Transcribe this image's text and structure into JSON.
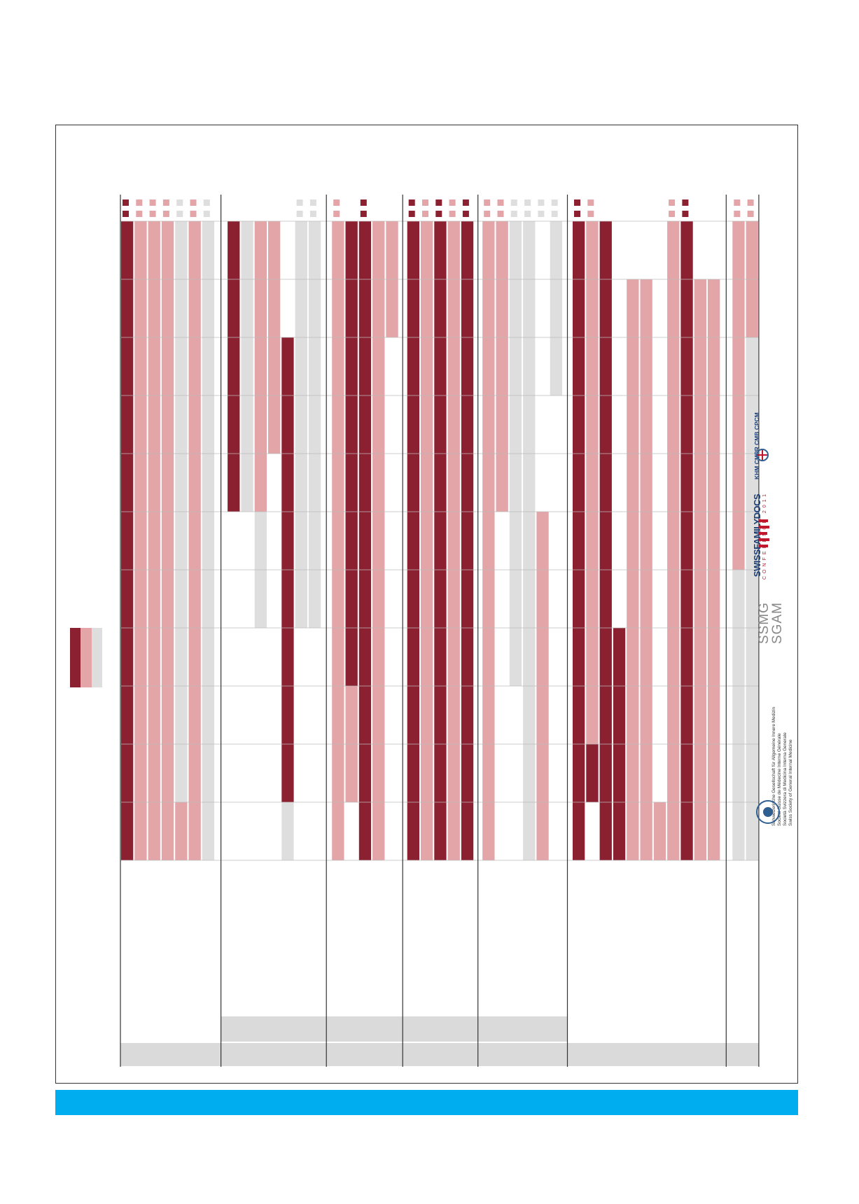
{
  "colors": {
    "dark": "#8b2030",
    "pink": "#e3a5a8",
    "gray": "#dedede",
    "band": "#00adef",
    "header_shade": "#dadada"
  },
  "legend": [
    {
      "color_key": "dark"
    },
    {
      "color_key": "pink"
    },
    {
      "color_key": "gray"
    }
  ],
  "schedule": {
    "column_count": 11,
    "groups": [
      {
        "rows": [
          {
            "marker": "dark",
            "spans": [
              [
                "dark",
                0,
                11
              ]
            ]
          },
          {
            "marker": "pink",
            "spans": [
              [
                "pink",
                0,
                11
              ]
            ]
          },
          {
            "marker": "pink",
            "spans": [
              [
                "pink",
                0,
                11
              ]
            ]
          },
          {
            "marker": "pink",
            "spans": [
              [
                "pink",
                0,
                11
              ]
            ]
          },
          {
            "marker": "gray",
            "spans": [
              [
                "gray",
                0,
                10
              ],
              [
                "pink",
                10,
                11
              ]
            ]
          },
          {
            "marker": "pink",
            "spans": [
              [
                "pink",
                0,
                11
              ]
            ]
          },
          {
            "marker": "gray",
            "spans": [
              [
                "gray",
                0,
                11
              ]
            ]
          }
        ]
      },
      {
        "rows": [
          {
            "marker": null,
            "spans": [
              [
                "dark",
                0,
                5
              ]
            ]
          },
          {
            "marker": null,
            "spans": [
              [
                "gray",
                0,
                5
              ]
            ]
          },
          {
            "marker": null,
            "spans": [
              [
                "pink",
                0,
                5
              ],
              [
                "gray",
                5,
                7
              ]
            ]
          },
          {
            "marker": null,
            "spans": [
              [
                "pink",
                0,
                4
              ]
            ]
          },
          {
            "marker": null,
            "spans": [
              [
                "dark",
                2,
                10
              ],
              [
                "gray",
                10,
                11
              ]
            ]
          },
          {
            "marker": "gray",
            "spans": [
              [
                "gray",
                0,
                7
              ]
            ]
          },
          {
            "marker": "gray",
            "spans": [
              [
                "gray",
                0,
                7
              ]
            ]
          }
        ]
      },
      {
        "rows": [
          {
            "marker": "pink",
            "spans": [
              [
                "pink",
                0,
                11
              ]
            ]
          },
          {
            "marker": null,
            "spans": [
              [
                "dark",
                0,
                8
              ],
              [
                "pink",
                8,
                10
              ]
            ]
          },
          {
            "marker": "dark",
            "spans": [
              [
                "dark",
                0,
                11
              ]
            ]
          },
          {
            "marker": null,
            "spans": [
              [
                "pink",
                0,
                11
              ]
            ]
          },
          {
            "marker": null,
            "spans": [
              [
                "pink",
                0,
                2
              ]
            ]
          }
        ]
      },
      {
        "rows": [
          {
            "marker": "dark",
            "spans": [
              [
                "dark",
                0,
                11
              ]
            ]
          },
          {
            "marker": "pink",
            "spans": [
              [
                "pink",
                0,
                11
              ]
            ]
          },
          {
            "marker": "dark",
            "spans": [
              [
                "dark",
                0,
                11
              ]
            ]
          },
          {
            "marker": "pink",
            "spans": [
              [
                "pink",
                0,
                11
              ]
            ]
          },
          {
            "marker": "dark",
            "spans": [
              [
                "dark",
                0,
                11
              ]
            ]
          }
        ]
      },
      {
        "rows": [
          {
            "marker": "pink",
            "spans": [
              [
                "pink",
                0,
                11
              ]
            ]
          },
          {
            "marker": "pink",
            "spans": [
              [
                "pink",
                0,
                5
              ]
            ]
          },
          {
            "marker": "gray",
            "spans": [
              [
                "gray",
                0,
                8
              ]
            ]
          },
          {
            "marker": "gray",
            "spans": [
              [
                "gray",
                0,
                11
              ]
            ]
          },
          {
            "marker": "gray",
            "spans": [
              [
                "pink",
                5,
                11
              ]
            ]
          },
          {
            "marker": "gray",
            "spans": [
              [
                "gray",
                0,
                3
              ]
            ]
          }
        ]
      },
      {
        "rows": [
          {
            "marker": "dark",
            "spans": [
              [
                "dark",
                0,
                11
              ]
            ]
          },
          {
            "marker": "pink",
            "spans": [
              [
                "pink",
                0,
                9
              ],
              [
                "dark",
                9,
                10
              ]
            ]
          },
          {
            "marker": null,
            "spans": [
              [
                "dark",
                0,
                11
              ]
            ]
          },
          {
            "marker": null,
            "spans": [
              [
                "dark",
                7,
                11
              ]
            ]
          },
          {
            "marker": null,
            "spans": [
              [
                "pink",
                1,
                11
              ]
            ]
          },
          {
            "marker": null,
            "spans": [
              [
                "pink",
                1,
                11
              ]
            ]
          },
          {
            "marker": null,
            "spans": [
              [
                "pink",
                10,
                11
              ]
            ]
          },
          {
            "marker": "pink",
            "spans": [
              [
                "pink",
                0,
                11
              ]
            ]
          },
          {
            "marker": "dark",
            "spans": [
              [
                "dark",
                0,
                11
              ]
            ]
          },
          {
            "marker": null,
            "spans": [
              [
                "pink",
                1,
                11
              ]
            ]
          },
          {
            "marker": null,
            "spans": [
              [
                "pink",
                1,
                11
              ]
            ]
          }
        ]
      },
      {
        "rows": [
          {
            "marker": "pink",
            "spans": [
              [
                "pink",
                0,
                6
              ],
              [
                "gray",
                6,
                11
              ]
            ]
          },
          {
            "marker": "pink",
            "spans": [
              [
                "pink",
                0,
                2
              ],
              [
                "gray",
                2,
                11
              ]
            ]
          }
        ]
      }
    ]
  },
  "logos": {
    "sgaim": {
      "lines": [
        "Schweizerische Gesellschaft für Allgemeine Innere Medizin",
        "Société Suisse de Médecine Interne Générale",
        "Società Svizzera di Medicina Interna Generale",
        "Swiss Society of General Internal Medicine"
      ]
    },
    "ssmg": {
      "line1": "SSMG",
      "line2": "SGAM"
    },
    "sfd": {
      "main": "SWISSFAMILYDOCS",
      "sub": "CONFERENCE 2011"
    },
    "kmi": {
      "main": "KHM CMPR CMB CPCM"
    }
  }
}
